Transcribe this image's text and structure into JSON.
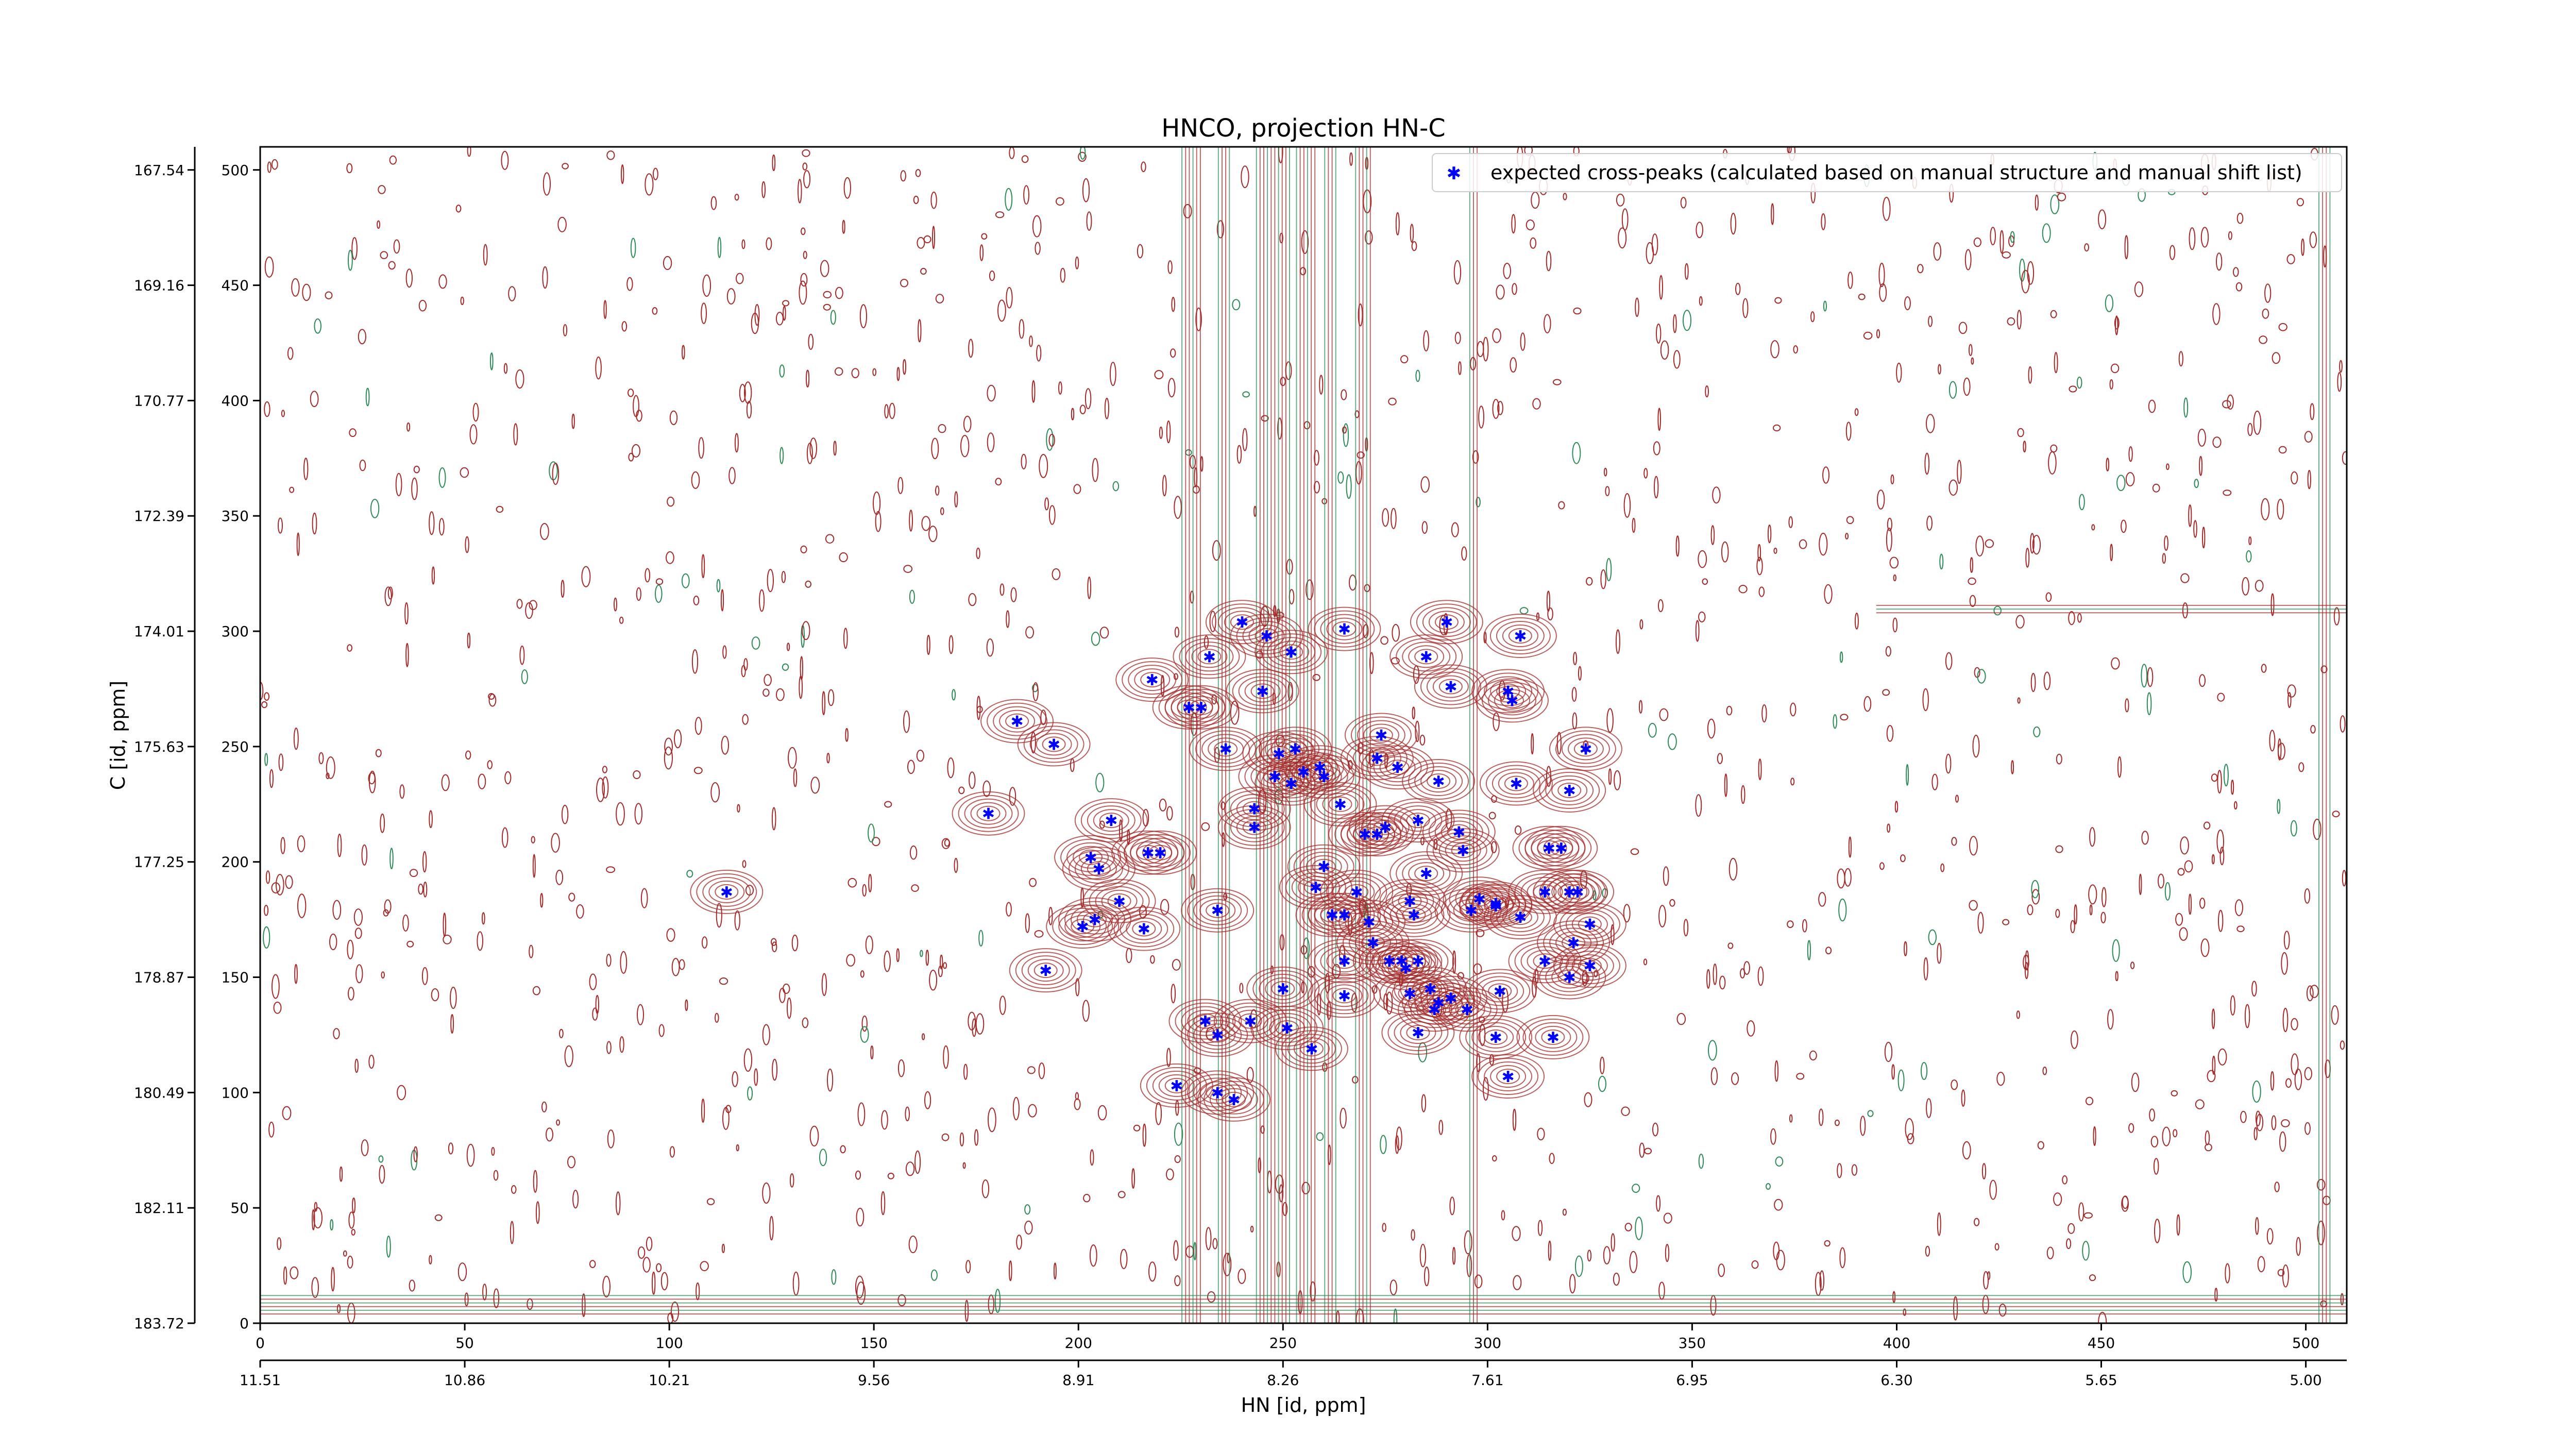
{
  "chart_data": {
    "type": "scatter",
    "title": "HNCO, projection HN-C",
    "xlabel": "HN [id, ppm]",
    "ylabel": "C [id, ppm]",
    "xlim": [
      0,
      510
    ],
    "ylim": [
      0,
      510
    ],
    "x_ticks": [
      0,
      50,
      100,
      150,
      200,
      250,
      300,
      350,
      400,
      450,
      500
    ],
    "y_ticks": [
      0,
      50,
      100,
      150,
      200,
      250,
      300,
      350,
      400,
      450,
      500
    ],
    "x_ppm_ticks": [
      "11.51",
      "10.86",
      "10.21",
      "9.56",
      "8.91",
      "8.26",
      "7.61",
      "6.95",
      "6.30",
      "5.65",
      "5.00"
    ],
    "y_ppm_ticks": [
      "183.72",
      "182.11",
      "180.49",
      "178.87",
      "177.25",
      "175.63",
      "174.01",
      "172.39",
      "170.77",
      "169.16",
      "167.54"
    ],
    "legend": {
      "position": "top-right",
      "label": "expected cross-peaks (calculated based on manual structure and manual shift list)"
    },
    "colors": {
      "marker": "#0000ff",
      "contour_positive": "#a52a2a",
      "contour_negative": "#2e8b57",
      "axis": "#000000"
    },
    "series": [
      {
        "name": "expected cross-peaks (calculated based on manual structure and manual shift list)",
        "points": [
          {
            "x": 114,
            "y": 187
          },
          {
            "x": 185,
            "y": 261
          },
          {
            "x": 178,
            "y": 221
          },
          {
            "x": 194,
            "y": 251
          },
          {
            "x": 192,
            "y": 153
          },
          {
            "x": 201,
            "y": 172
          },
          {
            "x": 204,
            "y": 175
          },
          {
            "x": 203,
            "y": 202
          },
          {
            "x": 208,
            "y": 218
          },
          {
            "x": 205,
            "y": 197
          },
          {
            "x": 210,
            "y": 183
          },
          {
            "x": 216,
            "y": 171
          },
          {
            "x": 217,
            "y": 204
          },
          {
            "x": 218,
            "y": 279
          },
          {
            "x": 220,
            "y": 204
          },
          {
            "x": 224,
            "y": 103
          },
          {
            "x": 227,
            "y": 267
          },
          {
            "x": 230,
            "y": 267
          },
          {
            "x": 231,
            "y": 131
          },
          {
            "x": 232,
            "y": 289
          },
          {
            "x": 234,
            "y": 125
          },
          {
            "x": 234,
            "y": 179
          },
          {
            "x": 234,
            "y": 100
          },
          {
            "x": 236,
            "y": 249
          },
          {
            "x": 238,
            "y": 97
          },
          {
            "x": 240,
            "y": 304
          },
          {
            "x": 242,
            "y": 131
          },
          {
            "x": 243,
            "y": 223
          },
          {
            "x": 243,
            "y": 215
          },
          {
            "x": 245,
            "y": 274
          },
          {
            "x": 246,
            "y": 298
          },
          {
            "x": 248,
            "y": 237
          },
          {
            "x": 249,
            "y": 247
          },
          {
            "x": 250,
            "y": 145
          },
          {
            "x": 251,
            "y": 128
          },
          {
            "x": 252,
            "y": 234
          },
          {
            "x": 252,
            "y": 291
          },
          {
            "x": 253,
            "y": 249
          },
          {
            "x": 255,
            "y": 239
          },
          {
            "x": 257,
            "y": 119
          },
          {
            "x": 258,
            "y": 189
          },
          {
            "x": 259,
            "y": 241
          },
          {
            "x": 260,
            "y": 237
          },
          {
            "x": 260,
            "y": 198
          },
          {
            "x": 262,
            "y": 177
          },
          {
            "x": 264,
            "y": 225
          },
          {
            "x": 265,
            "y": 301
          },
          {
            "x": 265,
            "y": 177
          },
          {
            "x": 265,
            "y": 157
          },
          {
            "x": 265,
            "y": 142
          },
          {
            "x": 268,
            "y": 187
          },
          {
            "x": 270,
            "y": 212
          },
          {
            "x": 271,
            "y": 174
          },
          {
            "x": 272,
            "y": 165
          },
          {
            "x": 273,
            "y": 212
          },
          {
            "x": 273,
            "y": 245
          },
          {
            "x": 274,
            "y": 255
          },
          {
            "x": 275,
            "y": 215
          },
          {
            "x": 276,
            "y": 157
          },
          {
            "x": 278,
            "y": 241
          },
          {
            "x": 279,
            "y": 157
          },
          {
            "x": 280,
            "y": 154
          },
          {
            "x": 282,
            "y": 177
          },
          {
            "x": 281,
            "y": 183
          },
          {
            "x": 281,
            "y": 143
          },
          {
            "x": 283,
            "y": 157
          },
          {
            "x": 283,
            "y": 126
          },
          {
            "x": 283,
            "y": 218
          },
          {
            "x": 285,
            "y": 289
          },
          {
            "x": 285,
            "y": 195
          },
          {
            "x": 286,
            "y": 145
          },
          {
            "x": 287,
            "y": 136
          },
          {
            "x": 288,
            "y": 139
          },
          {
            "x": 288,
            "y": 235
          },
          {
            "x": 290,
            "y": 304
          },
          {
            "x": 291,
            "y": 276
          },
          {
            "x": 291,
            "y": 141
          },
          {
            "x": 293,
            "y": 213
          },
          {
            "x": 295,
            "y": 136
          },
          {
            "x": 294,
            "y": 205
          },
          {
            "x": 296,
            "y": 179
          },
          {
            "x": 298,
            "y": 184
          },
          {
            "x": 302,
            "y": 182
          },
          {
            "x": 302,
            "y": 124
          },
          {
            "x": 302,
            "y": 181
          },
          {
            "x": 303,
            "y": 144
          },
          {
            "x": 305,
            "y": 274
          },
          {
            "x": 305,
            "y": 107
          },
          {
            "x": 306,
            "y": 270
          },
          {
            "x": 307,
            "y": 234
          },
          {
            "x": 308,
            "y": 298
          },
          {
            "x": 308,
            "y": 176
          },
          {
            "x": 314,
            "y": 187
          },
          {
            "x": 315,
            "y": 206
          },
          {
            "x": 314,
            "y": 157
          },
          {
            "x": 316,
            "y": 124
          },
          {
            "x": 318,
            "y": 206
          },
          {
            "x": 320,
            "y": 231
          },
          {
            "x": 321,
            "y": 165
          },
          {
            "x": 320,
            "y": 187
          },
          {
            "x": 322,
            "y": 187
          },
          {
            "x": 320,
            "y": 150
          },
          {
            "x": 324,
            "y": 249
          },
          {
            "x": 325,
            "y": 155
          },
          {
            "x": 325,
            "y": 173
          }
        ]
      }
    ]
  }
}
